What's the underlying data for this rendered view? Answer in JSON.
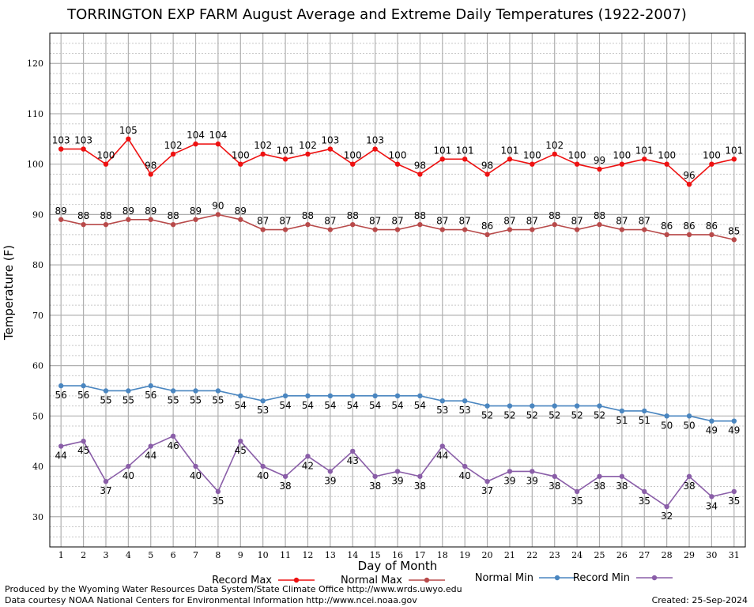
{
  "chart_data": {
    "type": "line",
    "title": "TORRINGTON EXP FARM August Average and Extreme Daily Temperatures (1922-2007)",
    "xlabel": "Day of Month",
    "ylabel": "Temperature (F)",
    "xlim": [
      0.5,
      31.5
    ],
    "ylim": [
      24,
      126
    ],
    "yticks": [
      30,
      40,
      50,
      60,
      70,
      80,
      90,
      100,
      110,
      120
    ],
    "x": [
      1,
      2,
      3,
      4,
      5,
      6,
      7,
      8,
      9,
      10,
      11,
      12,
      13,
      14,
      15,
      16,
      17,
      18,
      19,
      20,
      21,
      22,
      23,
      24,
      25,
      26,
      27,
      28,
      29,
      30,
      31
    ],
    "grid": true,
    "legend_position": "bottom",
    "series": [
      {
        "name": "Record Max",
        "color": "#ee1111",
        "label_pos": "above",
        "values": [
          103,
          103,
          100,
          105,
          98,
          102,
          104,
          104,
          100,
          102,
          101,
          102,
          103,
          100,
          103,
          100,
          98,
          101,
          101,
          98,
          101,
          100,
          102,
          100,
          99,
          100,
          101,
          100,
          96,
          100,
          101
        ]
      },
      {
        "name": "Normal Max",
        "color": "#b84a4a",
        "label_pos": "above",
        "values": [
          89,
          88,
          88,
          89,
          89,
          88,
          89,
          90,
          89,
          87,
          87,
          88,
          87,
          88,
          87,
          87,
          88,
          87,
          87,
          86,
          87,
          87,
          88,
          87,
          88,
          87,
          87,
          86,
          86,
          86,
          85
        ]
      },
      {
        "name": "Normal Min",
        "color": "#4a86c0",
        "label_pos": "below",
        "values": [
          56,
          56,
          55,
          55,
          56,
          55,
          55,
          55,
          54,
          53,
          54,
          54,
          54,
          54,
          54,
          54,
          54,
          53,
          53,
          52,
          52,
          52,
          52,
          52,
          52,
          51,
          51,
          50,
          50,
          49,
          49
        ]
      },
      {
        "name": "Record Min",
        "color": "#8a5ea8",
        "label_pos": "below",
        "values": [
          44,
          45,
          37,
          40,
          44,
          46,
          40,
          35,
          45,
          40,
          38,
          42,
          39,
          43,
          38,
          39,
          38,
          44,
          40,
          37,
          39,
          39,
          38,
          35,
          38,
          38,
          35,
          32,
          38,
          34,
          35
        ]
      }
    ]
  },
  "footer": {
    "credit_line_1": "Produced by the Wyoming Water Resources Data System/State Climate Office http://www.wrds.uwyo.edu",
    "credit_line_2": "Data courtesy NOAA National Centers for Environmental Information http://www.ncei.noaa.gov",
    "created": "Created:  25-Sep-2024"
  }
}
